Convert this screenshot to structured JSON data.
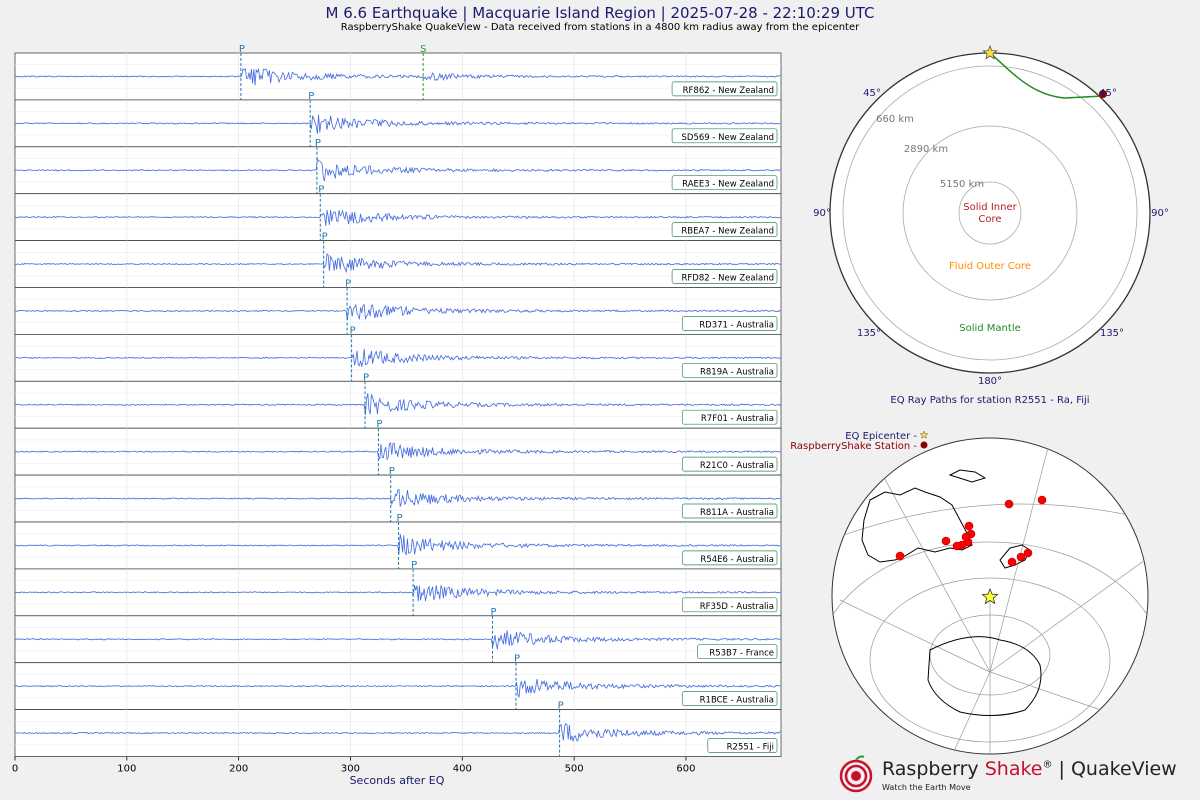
{
  "header": {
    "title": "M 6.6 Earthquake | Macquarie Island Region | 2025-07-28 - 22:10:29 UTC",
    "subtitle": "RaspberryShake QuakeView - Data received from stations in a 4800 km radius away from the epicenter"
  },
  "chart_data": [
    {
      "type": "line",
      "xlabel": "Seconds after EQ",
      "xlim": [
        0,
        685
      ],
      "x_ticks": [
        "0",
        "100",
        "200",
        "300",
        "400",
        "500",
        "600"
      ],
      "grid": true,
      "series": [
        {
          "name": "RF862 - New Zealand",
          "p_arrival": 202,
          "s_arrival": 365,
          "p_label": "P",
          "s_label": "S"
        },
        {
          "name": "SD569 - New Zealand",
          "p_arrival": 264,
          "p_label": "P"
        },
        {
          "name": "RAEE3 - New Zealand",
          "p_arrival": 270,
          "p_label": "P"
        },
        {
          "name": "RBEA7 - New Zealand",
          "p_arrival": 273,
          "p_label": "P"
        },
        {
          "name": "RFD82 - New Zealand",
          "p_arrival": 276,
          "p_label": "P"
        },
        {
          "name": "RD371 - Australia",
          "p_arrival": 297,
          "p_label": "P"
        },
        {
          "name": "R819A - Australia",
          "p_arrival": 301,
          "p_label": "P"
        },
        {
          "name": "R7F01 - Australia",
          "p_arrival": 313,
          "p_label": "P"
        },
        {
          "name": "R21C0 - Australia",
          "p_arrival": 325,
          "p_label": "P"
        },
        {
          "name": "R811A - Australia",
          "p_arrival": 336,
          "p_label": "P"
        },
        {
          "name": "R54E6 - Australia",
          "p_arrival": 343,
          "p_label": "P"
        },
        {
          "name": "RF35D - Australia",
          "p_arrival": 356,
          "p_label": "P"
        },
        {
          "name": "R53B7 - France",
          "p_arrival": 427,
          "p_label": "P"
        },
        {
          "name": "R1BCE - Australia",
          "p_arrival": 448,
          "p_label": "P"
        },
        {
          "name": "R2551 - Fiji",
          "p_arrival": 487,
          "p_label": "P"
        }
      ]
    },
    {
      "type": "diagram",
      "title": "EQ Ray Paths for station R2551 - Ra, Fiji",
      "angle_labels": [
        "45°",
        "45°",
        "90°",
        "90°",
        "135°",
        "135°",
        "180°"
      ],
      "depth_labels": [
        "660 km",
        "2890 km",
        "5150 km"
      ],
      "layers": [
        {
          "label": "Solid Inner Core",
          "color": "#b22222"
        },
        {
          "label": "Fluid Outer Core",
          "color": "#ff8c00"
        },
        {
          "label": "Solid Mantle",
          "color": "#228b22"
        }
      ]
    },
    {
      "type": "map",
      "legend": [
        {
          "label": "EQ Epicenter -",
          "color": "#191970"
        },
        {
          "label": "RaspberryShake Station -",
          "color": "#8b0000"
        }
      ]
    }
  ],
  "colors": {
    "waveform": "#4169e1",
    "p_line": "#1f77b4",
    "s_line": "#2ca02c",
    "title": "#191970",
    "station_marker": "#ff0000",
    "epicenter_marker": "#ffff33"
  },
  "logo": {
    "brand": "Raspberry",
    "brand_accent": "Shake",
    "reg": "®",
    "product": "| QuakeView",
    "tagline": "Watch the Earth Move"
  }
}
